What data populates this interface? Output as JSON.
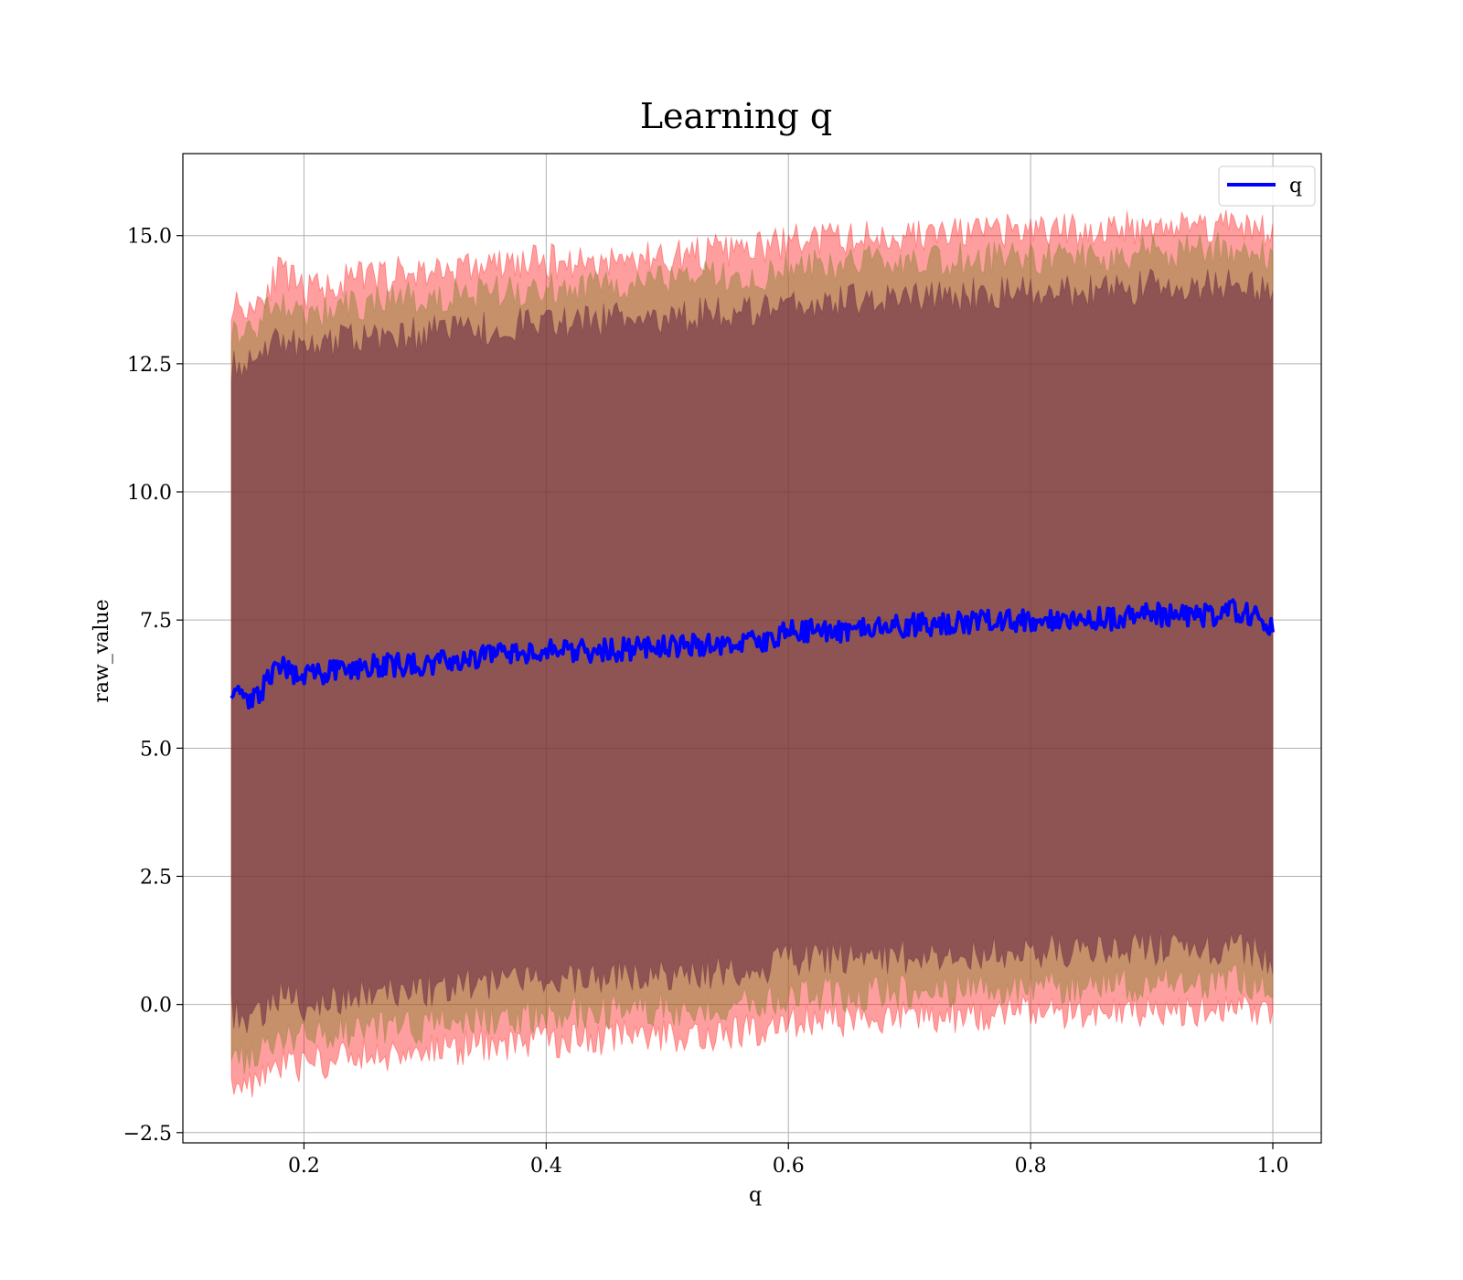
{
  "chart_data": {
    "type": "line",
    "title": "Learning q",
    "xlabel": "q",
    "ylabel": "raw_value",
    "xlim": [
      0.1,
      1.04
    ],
    "ylim": [
      -2.7,
      16.6
    ],
    "x_ticks": [
      0.2,
      0.4,
      0.6,
      0.8,
      1.0
    ],
    "x_tick_labels": [
      "0.2",
      "0.4",
      "0.6",
      "0.8",
      "1.0"
    ],
    "y_ticks": [
      -2.5,
      0.0,
      2.5,
      5.0,
      7.5,
      10.0,
      12.5,
      15.0
    ],
    "y_tick_labels": [
      "−2.5",
      "0.0",
      "2.5",
      "5.0",
      "7.5",
      "10.0",
      "12.5",
      "15.0"
    ],
    "grid": true,
    "legend": {
      "position": "top-right",
      "entries": [
        "q"
      ]
    },
    "series": [
      {
        "name": "q",
        "color": "#0000ff",
        "x": [
          0.14,
          0.15,
          0.16,
          0.18,
          0.2,
          0.25,
          0.3,
          0.35,
          0.4,
          0.45,
          0.5,
          0.55,
          0.58,
          0.6,
          0.65,
          0.7,
          0.75,
          0.8,
          0.85,
          0.9,
          0.95,
          0.97,
          1.0
        ],
        "values": [
          6.2,
          6.0,
          6.0,
          6.6,
          6.4,
          6.6,
          6.65,
          6.8,
          6.9,
          6.9,
          7.0,
          7.05,
          7.1,
          7.3,
          7.3,
          7.4,
          7.45,
          7.5,
          7.5,
          7.6,
          7.6,
          7.7,
          7.4
        ]
      }
    ],
    "bands": [
      {
        "color": "#ff0000",
        "x": [
          0.14,
          0.15,
          0.16,
          0.18,
          0.2,
          0.25,
          0.3,
          0.35,
          0.4,
          0.45,
          0.5,
          0.55,
          0.58,
          0.6,
          0.65,
          0.7,
          0.75,
          0.8,
          0.85,
          0.9,
          0.95,
          0.97,
          1.0
        ],
        "upper": [
          13.7,
          13.6,
          13.7,
          14.3,
          13.9,
          14.2,
          14.3,
          14.4,
          14.5,
          14.5,
          14.6,
          14.7,
          14.75,
          14.9,
          14.95,
          15.0,
          15.05,
          15.1,
          15.1,
          15.2,
          15.2,
          15.3,
          15.0
        ],
        "lower": [
          -1.4,
          -1.6,
          -1.5,
          -1.1,
          -1.2,
          -1.0,
          -0.9,
          -0.8,
          -0.7,
          -0.65,
          -0.6,
          -0.55,
          -0.5,
          -0.3,
          -0.3,
          -0.25,
          -0.2,
          -0.15,
          -0.15,
          -0.1,
          -0.1,
          0.0,
          -0.3
        ]
      },
      {
        "color": "#80802a",
        "x": [
          0.14,
          0.15,
          0.16,
          0.18,
          0.2,
          0.25,
          0.3,
          0.35,
          0.4,
          0.45,
          0.5,
          0.55,
          0.58,
          0.6,
          0.65,
          0.7,
          0.75,
          0.8,
          0.85,
          0.9,
          0.95,
          0.97,
          1.0
        ],
        "upper": [
          13.3,
          13.1,
          13.2,
          13.8,
          13.4,
          13.7,
          13.8,
          13.9,
          14.0,
          14.0,
          14.1,
          14.2,
          14.25,
          14.4,
          14.45,
          14.5,
          14.55,
          14.6,
          14.6,
          14.7,
          14.7,
          14.8,
          14.5
        ],
        "lower": [
          -0.9,
          -1.1,
          -1.0,
          -0.6,
          -0.7,
          -0.5,
          -0.4,
          -0.3,
          -0.2,
          -0.15,
          -0.1,
          -0.05,
          0.0,
          0.2,
          0.2,
          0.25,
          0.3,
          0.35,
          0.35,
          0.4,
          0.4,
          0.5,
          0.2
        ]
      },
      {
        "color": "#602040",
        "x": [
          0.14,
          0.15,
          0.16,
          0.18,
          0.2,
          0.25,
          0.3,
          0.35,
          0.4,
          0.45,
          0.5,
          0.55,
          0.58,
          0.6,
          0.65,
          0.7,
          0.75,
          0.8,
          0.85,
          0.9,
          0.95,
          0.97,
          1.0
        ],
        "upper": [
          12.5,
          12.4,
          12.5,
          13.0,
          12.8,
          13.0,
          13.1,
          13.2,
          13.3,
          13.35,
          13.4,
          13.5,
          13.55,
          13.7,
          13.75,
          13.8,
          13.85,
          13.9,
          13.9,
          14.0,
          14.0,
          14.1,
          13.8
        ],
        "lower": [
          -0.1,
          -0.3,
          -0.2,
          0.2,
          0.0,
          0.2,
          0.3,
          0.4,
          0.5,
          0.55,
          0.6,
          0.65,
          0.7,
          0.9,
          0.9,
          0.95,
          1.0,
          1.05,
          1.05,
          1.1,
          1.1,
          1.2,
          0.9
        ]
      }
    ]
  }
}
